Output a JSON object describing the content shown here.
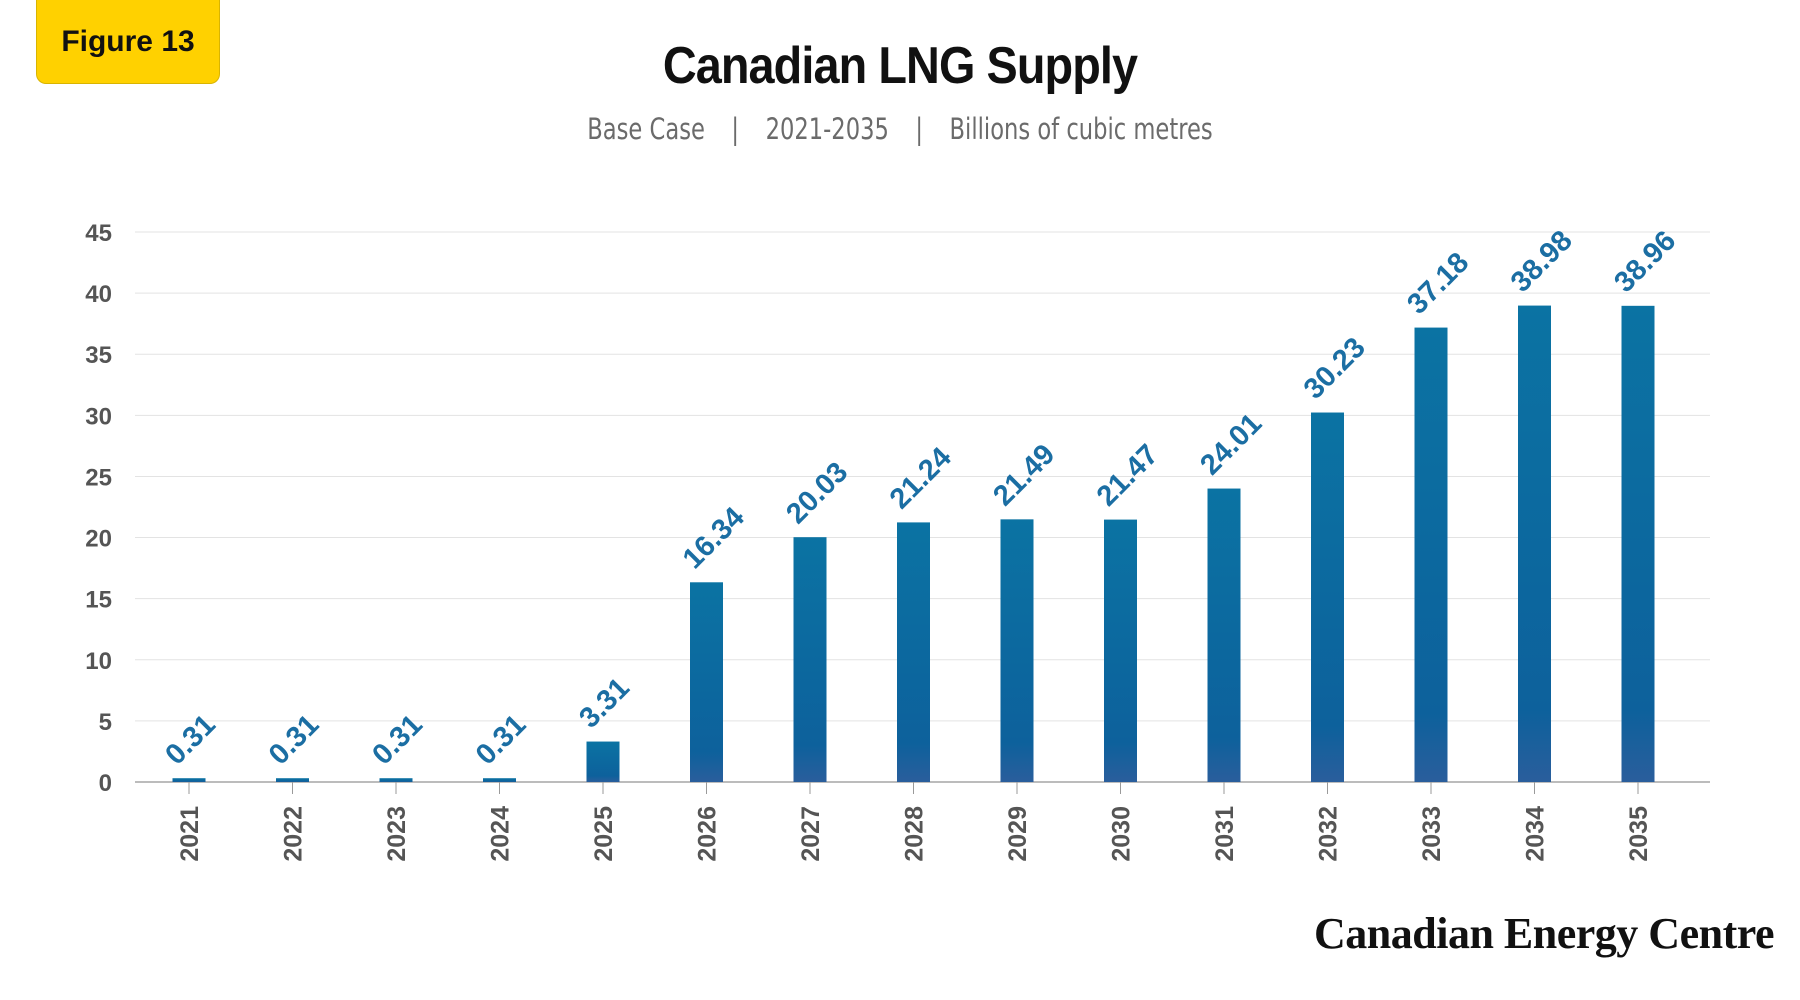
{
  "figure_label": "Figure 13",
  "footer": {
    "brand": "Canadian Energy Centre"
  },
  "colors": {
    "bar": "#1a6fa0",
    "label": "#1b6ea3",
    "badge": "#ffd100"
  },
  "chart_data": {
    "type": "bar",
    "title": "Canadian LNG Supply",
    "subtitle": [
      "Base Case",
      "2021-2035",
      "Billions of cubic metres"
    ],
    "xlabel": "",
    "ylabel": "",
    "ylim": [
      0,
      45
    ],
    "yticks": [
      0,
      5,
      10,
      15,
      20,
      25,
      30,
      35,
      40,
      45
    ],
    "grid": true,
    "categories": [
      "2021",
      "2022",
      "2023",
      "2024",
      "2025",
      "2026",
      "2027",
      "2028",
      "2029",
      "2030",
      "2031",
      "2032",
      "2033",
      "2034",
      "2035"
    ],
    "values": [
      0.31,
      0.31,
      0.31,
      0.31,
      3.31,
      16.34,
      20.03,
      21.24,
      21.49,
      21.47,
      24.01,
      30.23,
      37.18,
      38.98,
      38.96
    ],
    "data_labels": [
      "0.31",
      "0.31",
      "0.31",
      "0.31",
      "3.31",
      "16.34",
      "20.03",
      "21.24",
      "21.49",
      "21.47",
      "24.01",
      "30.23",
      "37.18",
      "38.98",
      "38.96"
    ]
  }
}
